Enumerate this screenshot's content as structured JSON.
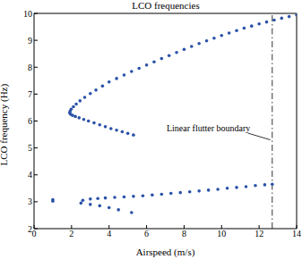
{
  "chart_data": {
    "type": "scatter",
    "title": "LCO frequencies",
    "x_label": "Airspeed (m/s)",
    "y_label": "LCO frequency (Hz)",
    "xlim": [
      0,
      14
    ],
    "ylim": [
      2,
      10
    ],
    "xticks": [
      0,
      2,
      4,
      6,
      8,
      10,
      12,
      14
    ],
    "yticks": [
      2,
      3,
      4,
      5,
      6,
      7,
      8,
      9,
      10
    ],
    "grid": false,
    "series": [
      {
        "name": "LCO",
        "color": "#2a52a8",
        "marker": "circle",
        "x": [
          5.3,
          5.0,
          4.7,
          4.4,
          4.1,
          3.8,
          3.5,
          3.2,
          2.9,
          2.65,
          2.4,
          2.2,
          2.05,
          1.95,
          1.9,
          1.92,
          1.98,
          2.1,
          2.25,
          2.45,
          2.7,
          3.0,
          3.3,
          3.65,
          4.0,
          4.4,
          4.8,
          5.2,
          5.6,
          6.0,
          6.4,
          6.8,
          7.2,
          7.6,
          8.0,
          8.4,
          8.8,
          9.2,
          9.6,
          10.0,
          10.4,
          10.8,
          11.2,
          11.6,
          12.0,
          12.4,
          12.8,
          13.2,
          13.6,
          14.0,
          1.0,
          1.0,
          2.5,
          2.6,
          3.0,
          3.4,
          3.8,
          4.3,
          4.8,
          5.3,
          5.8,
          6.3,
          6.8,
          7.3,
          7.8,
          8.3,
          8.8,
          9.3,
          9.8,
          10.3,
          10.8,
          11.3,
          11.8,
          12.3,
          12.7,
          3.0,
          3.5,
          4.0,
          4.5,
          5.2
        ],
        "values": [
          5.48,
          5.54,
          5.6,
          5.66,
          5.72,
          5.79,
          5.86,
          5.93,
          6.0,
          6.06,
          6.12,
          6.17,
          6.21,
          6.25,
          6.3,
          6.36,
          6.44,
          6.53,
          6.63,
          6.75,
          6.88,
          7.02,
          7.15,
          7.3,
          7.45,
          7.58,
          7.71,
          7.84,
          7.96,
          8.08,
          8.2,
          8.32,
          8.43,
          8.55,
          8.66,
          8.77,
          8.88,
          8.98,
          9.08,
          9.18,
          9.27,
          9.36,
          9.45,
          9.53,
          9.61,
          9.68,
          9.75,
          9.82,
          9.88,
          9.94,
          3.02,
          3.08,
          2.95,
          3.05,
          3.1,
          3.12,
          3.14,
          3.16,
          3.18,
          3.2,
          3.22,
          3.25,
          3.28,
          3.31,
          3.34,
          3.37,
          3.4,
          3.43,
          3.46,
          3.5,
          3.53,
          3.56,
          3.6,
          3.63,
          3.65,
          2.9,
          2.85,
          2.78,
          2.7,
          2.6
        ]
      }
    ],
    "annotations": [
      {
        "text": "Linear flutter boundary",
        "x": 12.7,
        "line_style": "dashdot"
      }
    ]
  }
}
